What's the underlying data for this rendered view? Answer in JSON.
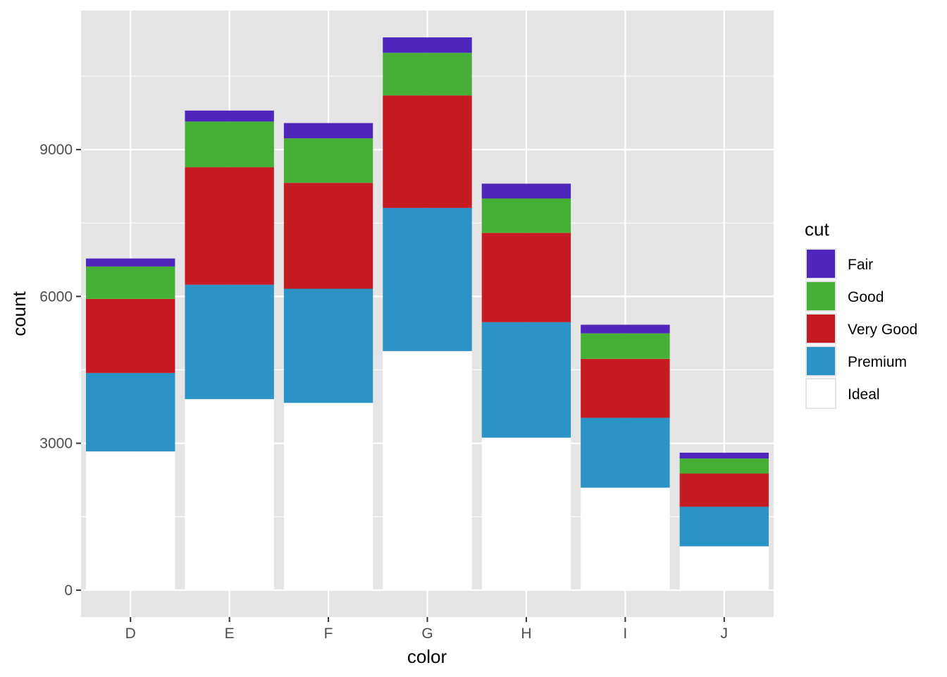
{
  "chart_data": {
    "type": "bar",
    "stacked": true,
    "categories": [
      "D",
      "E",
      "F",
      "G",
      "H",
      "I",
      "J"
    ],
    "series": [
      {
        "name": "Ideal",
        "color": "#ffffff",
        "values": [
          2834,
          3903,
          3826,
          4884,
          3115,
          2093,
          896
        ]
      },
      {
        "name": "Premium",
        "color": "#2b93c6",
        "values": [
          1603,
          2337,
          2331,
          2924,
          2360,
          1428,
          808
        ]
      },
      {
        "name": "Very Good",
        "color": "#c51b23",
        "values": [
          1513,
          2400,
          2164,
          2299,
          1824,
          1204,
          678
        ]
      },
      {
        "name": "Good",
        "color": "#46b036",
        "values": [
          662,
          933,
          909,
          871,
          702,
          522,
          307
        ]
      },
      {
        "name": "Fair",
        "color": "#4f26bb",
        "values": [
          163,
          224,
          312,
          314,
          303,
          175,
          119
        ]
      }
    ],
    "legend_order": [
      "Fair",
      "Good",
      "Very Good",
      "Premium",
      "Ideal"
    ],
    "legend_title": "cut",
    "xlabel": "color",
    "ylabel": "count",
    "yticks": [
      0,
      3000,
      6000,
      9000
    ],
    "ylim": [
      -550,
      11840
    ],
    "panel_background": "#e5e5e5",
    "grid_color": "#ffffff",
    "legend_position": "right"
  }
}
